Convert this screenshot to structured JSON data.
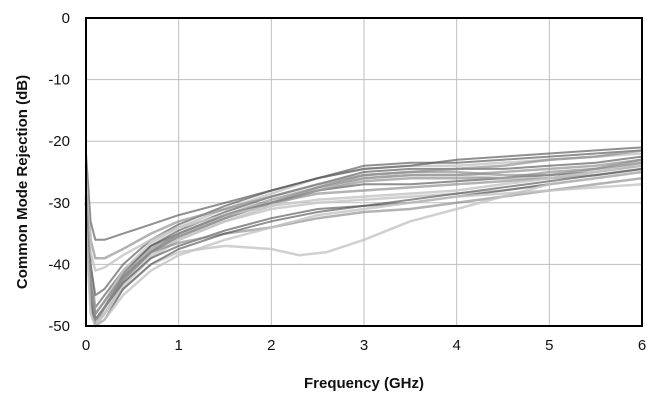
{
  "chart_data": {
    "type": "line",
    "xlabel": "Frequency (GHz)",
    "ylabel": "Common Mode Rejection (dB)",
    "xlim": [
      0,
      6
    ],
    "ylim": [
      -50,
      0
    ],
    "xticks": [
      "0",
      "1",
      "2",
      "3",
      "4",
      "5",
      "6"
    ],
    "yticks": [
      "0",
      "-10",
      "-20",
      "-30",
      "-40",
      "-50"
    ],
    "grid": true,
    "legend": "none",
    "colors": {
      "dark": "#555555",
      "mid": "#8a8a8a",
      "light": "#c4c4c4",
      "grid": "#bfbfbf",
      "frame": "#000000"
    },
    "series": [
      {
        "values": [
          [
            0,
            -27
          ],
          [
            0.05,
            -40
          ],
          [
            0.1,
            -47
          ],
          [
            0.2,
            -45
          ],
          [
            0.4,
            -41
          ],
          [
            0.7,
            -37
          ],
          [
            1,
            -35
          ],
          [
            1.5,
            -32
          ],
          [
            2,
            -30
          ],
          [
            2.5,
            -28
          ],
          [
            3,
            -27
          ],
          [
            3.5,
            -27
          ],
          [
            4,
            -26.5
          ],
          [
            4.5,
            -26
          ],
          [
            5,
            -25.5
          ],
          [
            5.5,
            -25
          ],
          [
            6,
            -24
          ]
        ]
      },
      {
        "values": [
          [
            0,
            -30
          ],
          [
            0.05,
            -44
          ],
          [
            0.1,
            -50
          ],
          [
            0.2,
            -47
          ],
          [
            0.4,
            -42
          ],
          [
            0.7,
            -38
          ],
          [
            1,
            -35.5
          ],
          [
            1.5,
            -32.5
          ],
          [
            2,
            -30
          ],
          [
            2.5,
            -27.5
          ],
          [
            3,
            -25.5
          ],
          [
            3.5,
            -25
          ],
          [
            4,
            -25
          ],
          [
            4.5,
            -25.5
          ],
          [
            5,
            -25.5
          ],
          [
            5.5,
            -24.5
          ],
          [
            6,
            -23
          ]
        ]
      },
      {
        "values": [
          [
            0,
            -32
          ],
          [
            0.05,
            -46
          ],
          [
            0.1,
            -50
          ],
          [
            0.2,
            -48
          ],
          [
            0.4,
            -43
          ],
          [
            0.7,
            -38.5
          ],
          [
            1,
            -36
          ],
          [
            1.5,
            -33
          ],
          [
            2,
            -30.5
          ],
          [
            2.5,
            -28
          ],
          [
            3,
            -26
          ],
          [
            3.5,
            -25.5
          ],
          [
            4,
            -25.5
          ],
          [
            4.5,
            -26
          ],
          [
            5,
            -26
          ],
          [
            5.5,
            -25
          ],
          [
            6,
            -23.5
          ]
        ]
      },
      {
        "values": [
          [
            0,
            -28
          ],
          [
            0.05,
            -42
          ],
          [
            0.1,
            -48
          ],
          [
            0.2,
            -46
          ],
          [
            0.4,
            -41.5
          ],
          [
            0.7,
            -37
          ],
          [
            1,
            -34.5
          ],
          [
            1.5,
            -31.5
          ],
          [
            2,
            -29
          ],
          [
            2.5,
            -27
          ],
          [
            3,
            -25
          ],
          [
            3.5,
            -24.5
          ],
          [
            4,
            -24.5
          ],
          [
            4.5,
            -24.5
          ],
          [
            5,
            -24
          ],
          [
            5.5,
            -23.5
          ],
          [
            6,
            -22.5
          ]
        ]
      },
      {
        "values": [
          [
            0,
            -29
          ],
          [
            0.05,
            -43
          ],
          [
            0.1,
            -49
          ],
          [
            0.2,
            -47
          ],
          [
            0.4,
            -42.5
          ],
          [
            0.7,
            -38
          ],
          [
            1,
            -35
          ],
          [
            1.5,
            -32
          ],
          [
            2,
            -30
          ],
          [
            2.5,
            -28.5
          ],
          [
            3,
            -28
          ],
          [
            3.5,
            -27.5
          ],
          [
            4,
            -27
          ],
          [
            4.5,
            -26.5
          ],
          [
            5,
            -26
          ],
          [
            5.5,
            -25.5
          ],
          [
            6,
            -24.5
          ]
        ]
      },
      {
        "values": [
          [
            0,
            -31
          ],
          [
            0.05,
            -45
          ],
          [
            0.1,
            -50
          ],
          [
            0.2,
            -48
          ],
          [
            0.4,
            -43.5
          ],
          [
            0.7,
            -39
          ],
          [
            1,
            -36
          ],
          [
            1.5,
            -33
          ],
          [
            2,
            -31
          ],
          [
            2.5,
            -30
          ],
          [
            3,
            -29.5
          ],
          [
            3.5,
            -29
          ],
          [
            4,
            -28.5
          ],
          [
            4.5,
            -28
          ],
          [
            5,
            -27
          ],
          [
            5.5,
            -26
          ],
          [
            6,
            -25
          ]
        ]
      },
      {
        "values": [
          [
            0,
            -33
          ],
          [
            0.05,
            -45
          ],
          [
            0.1,
            -49
          ],
          [
            0.2,
            -47
          ],
          [
            0.4,
            -43
          ],
          [
            0.7,
            -39
          ],
          [
            1,
            -37
          ],
          [
            1.5,
            -34.5
          ],
          [
            2,
            -32.5
          ],
          [
            2.5,
            -31
          ],
          [
            3,
            -30.5
          ],
          [
            3.5,
            -30
          ],
          [
            4,
            -29
          ],
          [
            4.5,
            -28
          ],
          [
            5,
            -27
          ],
          [
            5.5,
            -26
          ],
          [
            6,
            -25
          ]
        ]
      },
      {
        "values": [
          [
            0,
            -30
          ],
          [
            0.05,
            -44
          ],
          [
            0.1,
            -49
          ],
          [
            0.2,
            -47
          ],
          [
            0.4,
            -42.5
          ],
          [
            0.7,
            -38
          ],
          [
            1,
            -35.5
          ],
          [
            1.5,
            -32.5
          ],
          [
            2,
            -30
          ],
          [
            2.5,
            -28
          ],
          [
            3,
            -26.5
          ],
          [
            3.5,
            -26
          ],
          [
            4,
            -26
          ],
          [
            4.5,
            -26
          ],
          [
            5,
            -25
          ],
          [
            5.5,
            -24.5
          ],
          [
            6,
            -23.5
          ]
        ]
      },
      {
        "values": [
          [
            0,
            -27
          ],
          [
            0.05,
            -41
          ],
          [
            0.1,
            -48
          ],
          [
            0.2,
            -46
          ],
          [
            0.4,
            -41
          ],
          [
            0.7,
            -36.5
          ],
          [
            1,
            -34
          ],
          [
            1.5,
            -31
          ],
          [
            2,
            -28.5
          ],
          [
            2.5,
            -26
          ],
          [
            3,
            -24.5
          ],
          [
            3.5,
            -24
          ],
          [
            4,
            -24
          ],
          [
            4.5,
            -23.5
          ],
          [
            5,
            -23
          ],
          [
            5.5,
            -22.5
          ],
          [
            6,
            -22
          ]
        ]
      },
      {
        "values": [
          [
            0,
            -28
          ],
          [
            0.05,
            -40
          ],
          [
            0.1,
            -45
          ],
          [
            0.2,
            -44
          ],
          [
            0.4,
            -40
          ],
          [
            0.7,
            -36
          ],
          [
            1,
            -33.5
          ],
          [
            1.5,
            -30.5
          ],
          [
            2,
            -28
          ],
          [
            2.5,
            -26
          ],
          [
            3,
            -24
          ],
          [
            3.5,
            -23.5
          ],
          [
            4,
            -23.5
          ],
          [
            4.5,
            -23
          ],
          [
            5,
            -22.5
          ],
          [
            5.5,
            -22
          ],
          [
            6,
            -21.5
          ]
        ]
      },
      {
        "values": [
          [
            0,
            -30
          ],
          [
            0.05,
            -43
          ],
          [
            0.1,
            -48
          ],
          [
            0.2,
            -46
          ],
          [
            0.4,
            -42
          ],
          [
            0.7,
            -38
          ],
          [
            1,
            -36.5
          ],
          [
            1.5,
            -35
          ],
          [
            2,
            -34
          ],
          [
            2.5,
            -32.5
          ],
          [
            3,
            -31.5
          ],
          [
            3.5,
            -31
          ],
          [
            4,
            -30
          ],
          [
            4.5,
            -29
          ],
          [
            5,
            -28
          ],
          [
            5.5,
            -27
          ],
          [
            6,
            -26
          ]
        ]
      },
      {
        "values": [
          [
            0,
            -35
          ],
          [
            0.05,
            -47
          ],
          [
            0.1,
            -50
          ],
          [
            0.2,
            -48
          ],
          [
            0.4,
            -44
          ],
          [
            0.7,
            -40
          ],
          [
            1,
            -38
          ],
          [
            1.5,
            -37
          ],
          [
            2,
            -37.5
          ],
          [
            2.3,
            -38.5
          ],
          [
            2.6,
            -38
          ],
          [
            3,
            -36
          ],
          [
            3.5,
            -33
          ],
          [
            4,
            -31
          ],
          [
            4.5,
            -29
          ],
          [
            5,
            -27
          ],
          [
            5.5,
            -26
          ],
          [
            6,
            -25
          ]
        ]
      },
      {
        "values": [
          [
            0,
            -22
          ],
          [
            0.05,
            -33
          ],
          [
            0.1,
            -36
          ],
          [
            0.2,
            -36
          ],
          [
            0.4,
            -35
          ],
          [
            0.7,
            -33.5
          ],
          [
            1,
            -32
          ],
          [
            1.5,
            -30
          ],
          [
            2,
            -28
          ],
          [
            2.5,
            -26
          ],
          [
            3,
            -24.5
          ],
          [
            3.5,
            -24
          ],
          [
            4,
            -23
          ],
          [
            4.5,
            -22.5
          ],
          [
            5,
            -22
          ],
          [
            5.5,
            -21.5
          ],
          [
            6,
            -21
          ]
        ]
      },
      {
        "values": [
          [
            0,
            -24
          ],
          [
            0.05,
            -36
          ],
          [
            0.1,
            -39
          ],
          [
            0.2,
            -39
          ],
          [
            0.4,
            -37.5
          ],
          [
            0.7,
            -35
          ],
          [
            1,
            -33
          ],
          [
            1.5,
            -31
          ],
          [
            2,
            -29
          ],
          [
            2.5,
            -27
          ],
          [
            3,
            -25.5
          ],
          [
            3.5,
            -25
          ],
          [
            4,
            -24.5
          ],
          [
            4.5,
            -24
          ],
          [
            5,
            -23
          ],
          [
            5.5,
            -22.5
          ],
          [
            6,
            -21.5
          ]
        ]
      },
      {
        "values": [
          [
            0,
            -26
          ],
          [
            0.05,
            -38
          ],
          [
            0.1,
            -41
          ],
          [
            0.2,
            -40.5
          ],
          [
            0.4,
            -38.5
          ],
          [
            0.7,
            -36
          ],
          [
            1,
            -34
          ],
          [
            1.5,
            -32
          ],
          [
            2,
            -30.5
          ],
          [
            2.5,
            -29.5
          ],
          [
            3,
            -29
          ],
          [
            3.5,
            -28.5
          ],
          [
            4,
            -28
          ],
          [
            4.5,
            -27
          ],
          [
            5,
            -26
          ],
          [
            5.5,
            -25
          ],
          [
            6,
            -24
          ]
        ]
      },
      {
        "values": [
          [
            0,
            -32
          ],
          [
            0.05,
            -46
          ],
          [
            0.1,
            -50
          ],
          [
            0.2,
            -49
          ],
          [
            0.4,
            -44
          ],
          [
            0.7,
            -40
          ],
          [
            1,
            -37.5
          ],
          [
            1.5,
            -35
          ],
          [
            2,
            -33
          ],
          [
            2.5,
            -31.5
          ],
          [
            3,
            -30.5
          ],
          [
            3.5,
            -29.5
          ],
          [
            4,
            -28.5
          ],
          [
            4.5,
            -27.5
          ],
          [
            5,
            -26.5
          ],
          [
            5.5,
            -25.5
          ],
          [
            6,
            -24.5
          ]
        ]
      },
      {
        "values": [
          [
            0,
            -29
          ],
          [
            0.05,
            -43
          ],
          [
            0.1,
            -49
          ],
          [
            0.2,
            -47
          ],
          [
            0.4,
            -42
          ],
          [
            0.7,
            -37.5
          ],
          [
            1,
            -35
          ],
          [
            1.5,
            -32
          ],
          [
            2,
            -29.5
          ],
          [
            2.5,
            -27.5
          ],
          [
            3,
            -26
          ],
          [
            3.5,
            -25.5
          ],
          [
            4,
            -25.5
          ],
          [
            4.5,
            -25
          ],
          [
            5,
            -24.5
          ],
          [
            5.5,
            -24
          ],
          [
            6,
            -23
          ]
        ]
      },
      {
        "values": [
          [
            0,
            -34
          ],
          [
            0.05,
            -48
          ],
          [
            0.1,
            -50
          ],
          [
            0.2,
            -49
          ],
          [
            0.4,
            -45
          ],
          [
            0.7,
            -41
          ],
          [
            1,
            -38.5
          ],
          [
            1.5,
            -36
          ],
          [
            2,
            -34
          ],
          [
            2.5,
            -32
          ],
          [
            3,
            -31
          ],
          [
            3.5,
            -30
          ],
          [
            4,
            -29
          ],
          [
            4.5,
            -28.5
          ],
          [
            5,
            -28
          ],
          [
            5.5,
            -27.5
          ],
          [
            6,
            -27
          ]
        ]
      }
    ]
  }
}
